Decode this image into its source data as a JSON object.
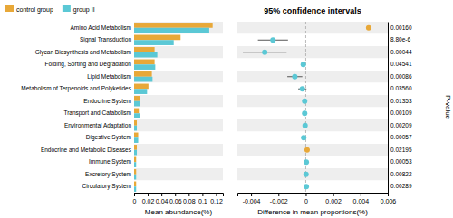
{
  "chart_data": [
    {
      "type": "bar",
      "orientation": "horizontal",
      "categories": [
        "Amino Acid Metabolism",
        "Signal Transduction",
        "Glycan Biosynthesis and Metabolism",
        "Folding, Sorting and Degradation",
        "Lipid Metabolism",
        "Metabolism of Terpenoids and Polyketides",
        "Endocrine System",
        "Transport and Catabolism",
        "Environmental Adaptation",
        "Digestive System",
        "Endocrine and Metabolic Diseases",
        "Immune System",
        "Excretory System",
        "Circulatory System"
      ],
      "series": [
        {
          "name": "control group",
          "color": "#E8A838",
          "values": [
            0.115,
            0.068,
            0.03,
            0.03,
            0.026,
            0.021,
            0.008,
            0.007,
            0.004,
            0.006,
            0.004,
            0.003,
            0.003,
            0.003
          ]
        },
        {
          "name": "group II",
          "color": "#5BC8D5",
          "values": [
            0.11,
            0.058,
            0.034,
            0.031,
            0.027,
            0.019,
            0.009,
            0.008,
            0.004,
            0.006,
            0.004,
            0.003,
            0.003,
            0.003
          ]
        }
      ],
      "xlabel": "Mean abundance(%)",
      "xlim": [
        0,
        0.13
      ],
      "xticks": [
        0,
        0.02,
        0.04,
        0.06,
        0.08,
        0.1,
        0.12
      ],
      "legend": "upper left",
      "grid": false
    },
    {
      "type": "scatter",
      "marker": "circle",
      "title": "95% confidence intervals",
      "categories": [
        null,
        null,
        null,
        null,
        null,
        null,
        null,
        null,
        null,
        null,
        null,
        null,
        null,
        null
      ],
      "values": [
        0.0046,
        -0.0024,
        -0.003,
        -0.00018,
        -0.0008,
        -0.00025,
        -8e-05,
        -8e-05,
        -5e-05,
        -0.00015,
        0.0001,
        4e-05,
        2e-05,
        4e-05
      ],
      "ci_low": [
        0.0046,
        -0.0035,
        -0.0046,
        -0.00028,
        -0.00135,
        -0.00055,
        -0.00018,
        -0.00018,
        -5e-05,
        -0.00025,
        0.0001,
        4e-05,
        2e-05,
        4e-05
      ],
      "ci_high": [
        0.0046,
        -0.0013,
        -0.0014,
        -8e-05,
        -0.00025,
        5e-05,
        2e-05,
        2e-05,
        -5e-05,
        -5e-05,
        0.0001,
        4e-05,
        2e-05,
        4e-05
      ],
      "colors": [
        "#E8A838",
        "#5BC8D5",
        "#5BC8D5",
        "#5BC8D5",
        "#5BC8D5",
        "#5BC8D5",
        "#5BC8D5",
        "#5BC8D5",
        "#5BC8D5",
        "#5BC8D5",
        "#E8A838",
        "#5BC8D5",
        "#5BC8D5",
        "#5BC8D5"
      ],
      "p_values": [
        "0.00160",
        "8.80e-6",
        "0.00044",
        "0.04541",
        "0.00086",
        "0.03560",
        "0.01353",
        "0.00109",
        "0.00209",
        "0.00057",
        "0.02195",
        "0.00053",
        "0.00822",
        "0.00289"
      ],
      "reference_line": 0,
      "xlabel": "Difference in mean proportions(%)",
      "y2label": "P-value",
      "xlim": [
        -0.005,
        0.006
      ],
      "xticks": [
        -0.004,
        -0.002,
        0,
        0.002,
        0.004,
        0.006
      ],
      "grid": false
    }
  ]
}
